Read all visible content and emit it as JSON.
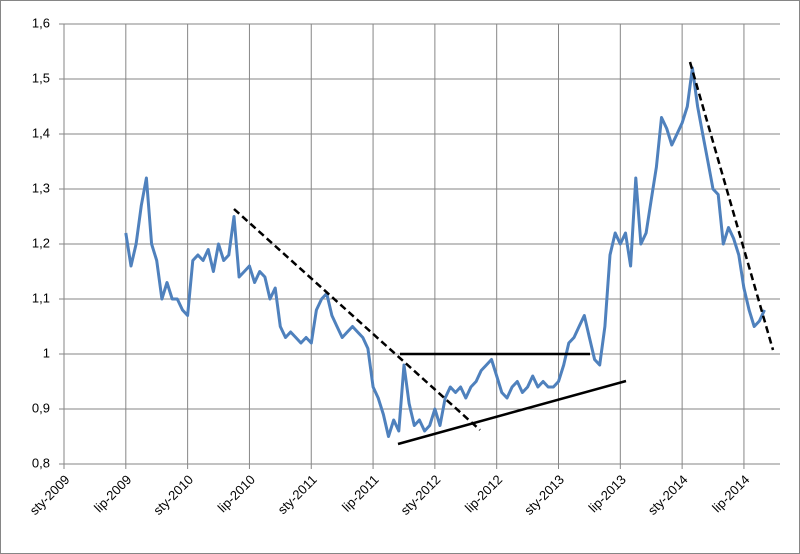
{
  "chart_data": {
    "type": "line",
    "categories": [
      "sty-2009",
      null,
      null,
      null,
      null,
      null,
      null,
      null,
      null,
      null,
      null,
      null,
      "lip-2009",
      null,
      null,
      null,
      null,
      null,
      null,
      null,
      null,
      null,
      null,
      null,
      "sty-2010",
      null,
      null,
      null,
      null,
      null,
      null,
      null,
      null,
      null,
      null,
      null,
      "lip-2010",
      null,
      null,
      null,
      null,
      null,
      null,
      null,
      null,
      null,
      null,
      null,
      "sty-2011",
      null,
      null,
      null,
      null,
      null,
      null,
      null,
      null,
      null,
      null,
      null,
      "lip-2011",
      null,
      null,
      null,
      null,
      null,
      null,
      null,
      null,
      null,
      null,
      null,
      "sty-2012",
      null,
      null,
      null,
      null,
      null,
      null,
      null,
      null,
      null,
      null,
      null,
      "lip-2012",
      null,
      null,
      null,
      null,
      null,
      null,
      null,
      null,
      null,
      null,
      null,
      "sty-2013",
      null,
      null,
      null,
      null,
      null,
      null,
      null,
      null,
      null,
      null,
      null,
      "lip-2013",
      null,
      null,
      null,
      null,
      null,
      null,
      null,
      null,
      null,
      null,
      null,
      "sty-2014",
      null,
      null,
      null,
      null,
      null,
      null,
      null,
      null,
      null,
      null,
      null,
      "lip-2014",
      null,
      null,
      null,
      null,
      null,
      null,
      null
    ],
    "series": [
      {
        "color": "#4f81bd",
        "values": [
          null,
          null,
          null,
          null,
          null,
          null,
          null,
          null,
          null,
          null,
          null,
          null,
          1.22,
          1.16,
          1.2,
          1.27,
          1.32,
          1.2,
          1.17,
          1.1,
          1.13,
          1.1,
          1.1,
          1.08,
          1.07,
          1.17,
          1.18,
          1.17,
          1.19,
          1.15,
          1.2,
          1.17,
          1.18,
          1.25,
          1.14,
          1.15,
          1.16,
          1.13,
          1.15,
          1.14,
          1.1,
          1.12,
          1.05,
          1.03,
          1.04,
          1.03,
          1.02,
          1.03,
          1.02,
          1.08,
          1.1,
          1.11,
          1.07,
          1.05,
          1.03,
          1.04,
          1.05,
          1.04,
          1.03,
          1.01,
          0.94,
          0.92,
          0.89,
          0.85,
          0.88,
          0.86,
          0.98,
          0.91,
          0.87,
          0.88,
          0.86,
          0.87,
          0.9,
          0.87,
          0.92,
          0.94,
          0.93,
          0.94,
          0.92,
          0.94,
          0.95,
          0.97,
          0.98,
          0.99,
          0.96,
          0.93,
          0.92,
          0.94,
          0.95,
          0.93,
          0.94,
          0.96,
          0.94,
          0.95,
          0.94,
          0.94,
          0.95,
          0.98,
          1.02,
          1.03,
          1.05,
          1.07,
          1.03,
          0.99,
          0.98,
          1.05,
          1.18,
          1.22,
          1.2,
          1.22,
          1.16,
          1.32,
          1.2,
          1.22,
          1.28,
          1.34,
          1.43,
          1.41,
          1.38,
          1.4,
          1.42,
          1.45,
          1.52,
          1.45,
          1.4,
          1.35,
          1.3,
          1.29,
          1.2,
          1.23,
          1.21,
          1.18,
          1.12,
          1.08,
          1.05,
          1.06,
          1.08,
          null,
          null,
          null
        ]
      }
    ],
    "ylim": [
      0.8,
      1.6
    ],
    "yticks": [
      {
        "value": 0.8,
        "label": "0,8"
      },
      {
        "value": 0.9,
        "label": "0,9"
      },
      1,
      {
        "value": 1.1,
        "label": "1,1"
      },
      {
        "value": 1.2,
        "label": "1,2"
      },
      {
        "value": 1.3,
        "label": "1,3"
      },
      {
        "value": 1.4,
        "label": "1,4"
      },
      {
        "value": 1.5,
        "label": "1,5"
      },
      {
        "value": 1.6,
        "label": "1,6"
      }
    ],
    "grid": true
  }
}
